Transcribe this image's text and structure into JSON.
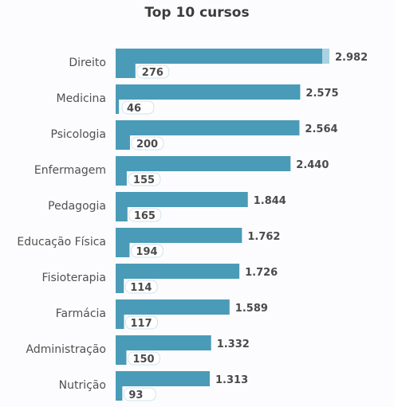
{
  "chart_data": {
    "type": "bar",
    "orientation": "horizontal",
    "title": "Top 10 cursos",
    "categories": [
      "Direito",
      "Medicina",
      "Psicologia",
      "Enfermagem",
      "Pedagogia",
      "Educação Física",
      "Fisioterapia",
      "Farmácia",
      "Administração",
      "Nutrição"
    ],
    "series": [
      {
        "values": [
          2982,
          2575,
          2564,
          2440,
          1844,
          1762,
          1726,
          1589,
          1332,
          1313
        ],
        "labels": [
          "2.982",
          "2.575",
          "2.564",
          "2.440",
          "1.844",
          "1.762",
          "1.726",
          "1.589",
          "1.332",
          "1.313"
        ]
      },
      {
        "values": [
          276,
          46,
          200,
          155,
          165,
          194,
          114,
          117,
          150,
          93
        ],
        "labels": [
          "276",
          "46",
          "200",
          "155",
          "165",
          "194",
          "114",
          "117",
          "150",
          "93"
        ]
      }
    ],
    "colors": {
      "bar": "#4a9bb7",
      "bar_tip": "#a9d3e3",
      "badge": "#ffffff"
    },
    "xlim": [
      0,
      3000
    ],
    "grid": false,
    "legend": "none"
  }
}
